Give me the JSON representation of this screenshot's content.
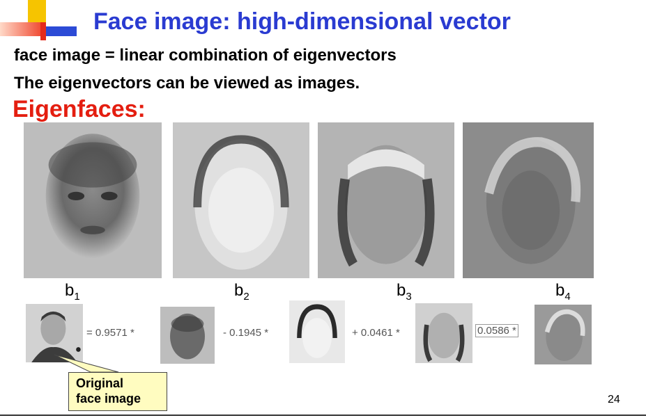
{
  "slide": {
    "title": "Face image: high-dimensional vector",
    "line1": "face image = linear combination of eigenvectors",
    "line2": "The eigenvectors can be viewed as images.",
    "heading": "Eigenfaces:",
    "page_number": "24"
  },
  "eigenfaces": [
    {
      "label_base": "b",
      "label_sub": "1"
    },
    {
      "label_base": "b",
      "label_sub": "2"
    },
    {
      "label_base": "b",
      "label_sub": "3"
    },
    {
      "label_base": "b",
      "label_sub": "4"
    }
  ],
  "equation": {
    "coef1": "= 0.9571 *",
    "coef2": "- 0.1945 *",
    "coef3": "+ 0.0461 *",
    "coef4": "0.0586 *"
  },
  "callout": {
    "line1": "Original",
    "line2": "face image"
  },
  "colors": {
    "title": "#2a3bd1",
    "heading": "#e41e10",
    "callout_bg": "#fffcc0"
  }
}
